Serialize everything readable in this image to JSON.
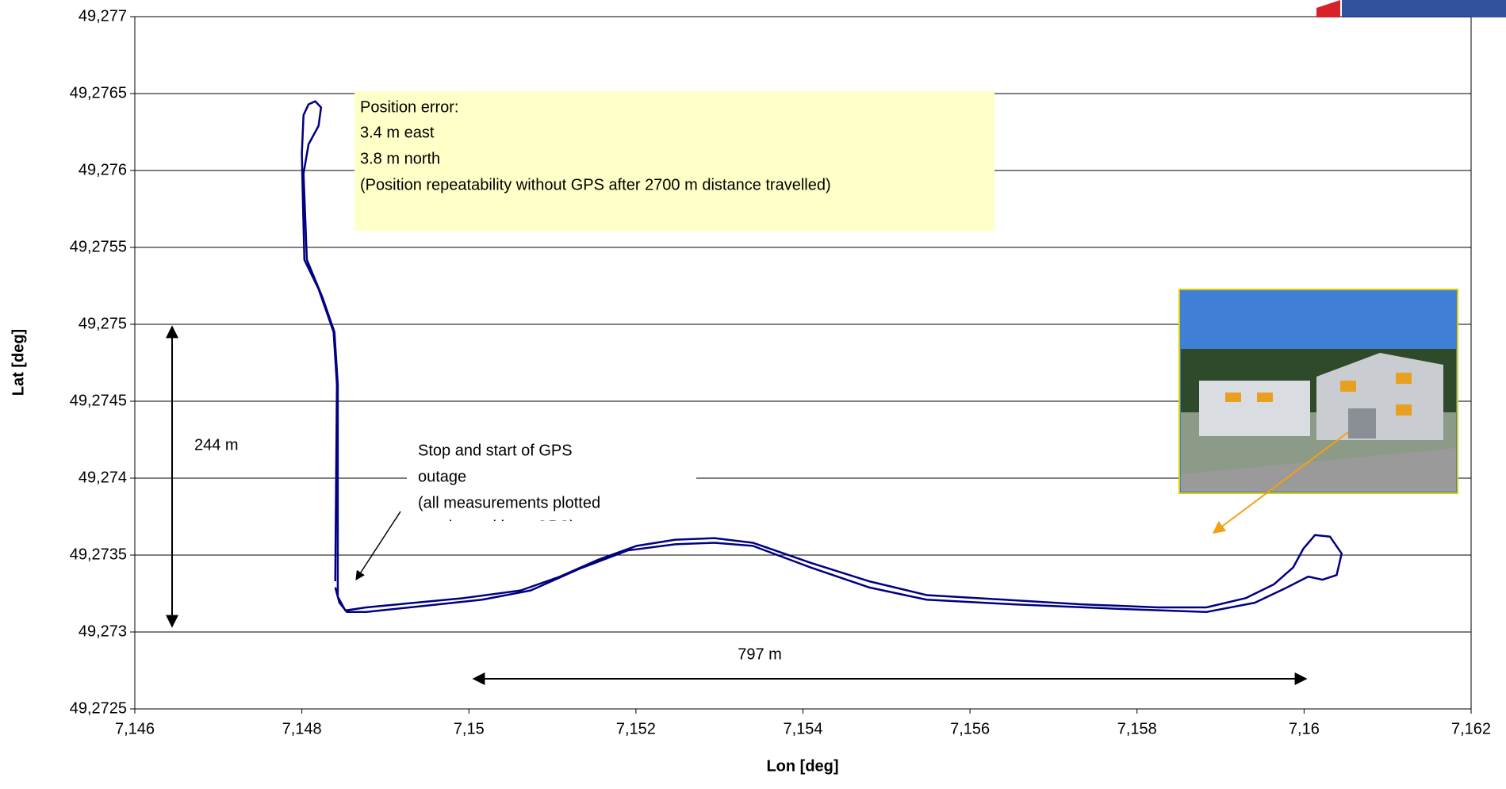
{
  "chart_data": {
    "type": "line",
    "xlabel": "Lon [deg]",
    "ylabel": "Lat [deg]",
    "color": "#000080",
    "grid": true,
    "xlim": [
      7.146,
      7.162
    ],
    "xticks": [
      {
        "value": 7.146,
        "label": "7,146"
      },
      {
        "value": 7.148,
        "label": "7,148"
      },
      {
        "value": 7.15,
        "label": "7,15"
      },
      {
        "value": 7.152,
        "label": "7,152"
      },
      {
        "value": 7.154,
        "label": "7,154"
      },
      {
        "value": 7.156,
        "label": "7,156"
      },
      {
        "value": 7.158,
        "label": "7,158"
      },
      {
        "value": 7.16,
        "label": "7,16"
      },
      {
        "value": 7.162,
        "label": "7,162"
      }
    ],
    "ylim": [
      49.2725,
      49.277
    ],
    "yticks": [
      {
        "value": 49.2725,
        "label": "49,2725"
      },
      {
        "value": 49.273,
        "label": "49,273"
      },
      {
        "value": 49.2735,
        "label": "49,2735"
      },
      {
        "value": 49.274,
        "label": "49,274"
      },
      {
        "value": 49.2745,
        "label": "49,2745"
      },
      {
        "value": 49.275,
        "label": "49,275"
      },
      {
        "value": 49.2755,
        "label": "49,2755"
      },
      {
        "value": 49.276,
        "label": "49,276"
      },
      {
        "value": 49.2765,
        "label": "49,2765"
      },
      {
        "value": 49.277,
        "label": "49,277"
      }
    ],
    "x": [
      7.1484,
      7.14842,
      7.14838,
      7.1482,
      7.14803,
      7.14801,
      7.148,
      7.14802,
      7.14808,
      7.14816,
      7.14823,
      7.1482,
      7.14808,
      7.14802,
      7.14806,
      7.14825,
      7.14839,
      7.14843,
      7.14843,
      7.14852,
      7.14877,
      7.14935,
      7.14993,
      7.15062,
      7.15109,
      7.15155,
      7.15201,
      7.15247,
      7.15294,
      7.1534,
      7.15409,
      7.15479,
      7.15548,
      7.15641,
      7.15733,
      7.15825,
      7.15883,
      7.1593,
      7.15964,
      7.15987,
      7.15999,
      7.16013,
      7.16031,
      7.16045,
      7.16039,
      7.16022,
      7.16005,
      7.15976,
      7.15941,
      7.15883,
      7.15779,
      7.15652,
      7.15548,
      7.15479,
      7.15409,
      7.1534,
      7.15294,
      7.15247,
      7.1519,
      7.15132,
      7.15074,
      7.15016,
      7.14947,
      7.14877,
      7.14854,
      7.14845,
      7.1484
    ],
    "values": [
      49.27333,
      49.27461,
      49.27495,
      49.27523,
      49.27542,
      49.27586,
      49.27611,
      49.27636,
      49.27643,
      49.27645,
      49.27641,
      49.27629,
      49.27617,
      49.27598,
      49.27542,
      49.27517,
      49.27495,
      49.27461,
      49.27323,
      49.27314,
      49.27316,
      49.27319,
      49.27322,
      49.27327,
      49.27336,
      49.27347,
      49.27356,
      49.2736,
      49.27361,
      49.27358,
      49.27345,
      49.27333,
      49.27324,
      49.27321,
      49.27318,
      49.27316,
      49.27316,
      49.27322,
      49.27331,
      49.27342,
      49.27354,
      49.27363,
      49.27362,
      49.27351,
      49.27337,
      49.27334,
      49.27336,
      49.27328,
      49.27319,
      49.27313,
      49.27315,
      49.27318,
      49.27321,
      49.27329,
      49.27342,
      49.27356,
      49.27358,
      49.27357,
      49.27353,
      49.27341,
      49.27327,
      49.27321,
      49.27317,
      49.27313,
      49.27313,
      49.27319,
      49.27329
    ],
    "annotations": {
      "error_box": [
        "Position error:",
        "3.4 m east",
        "3.8 m north",
        "(Position repeatability without GPS after 2700 m distance travelled)"
      ],
      "vertical_distance": "244 m",
      "horizontal_distance": "797 m",
      "gps_note": [
        "Stop and start of GPS",
        "outage",
        "(all measurements plotted",
        "overlays without GPS)"
      ]
    }
  }
}
